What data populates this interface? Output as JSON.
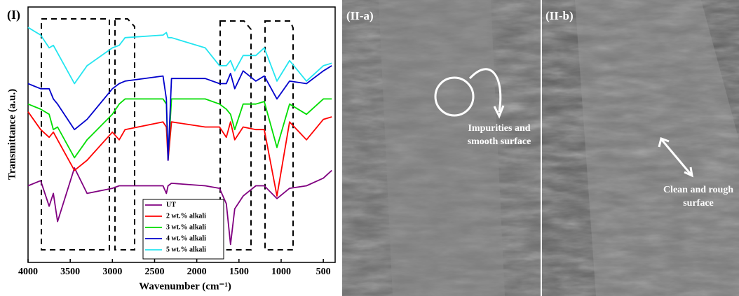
{
  "chart_data": {
    "type": "line",
    "panel_label": "(I)",
    "x_label": "Wavenumber (cm⁻¹)",
    "y_label": "Transmittance (a.u.)",
    "xlim": [
      4000,
      360
    ],
    "ylim": [
      0,
      100
    ],
    "xticks": [
      4000,
      3500,
      3000,
      2500,
      2000,
      1500,
      1000,
      500
    ],
    "legend": "lower center",
    "x": [
      4000,
      3850,
      3750,
      3700,
      3650,
      3450,
      3300,
      3000,
      2920,
      2850,
      2400,
      2360,
      2340,
      2300,
      1900,
      1730,
      1650,
      1600,
      1550,
      1450,
      1300,
      1200,
      1050,
      900,
      700,
      500,
      400
    ],
    "series": [
      {
        "name": "UT",
        "color": "#800080",
        "values": [
          30,
          32,
          22,
          27,
          16,
          37,
          27,
          29,
          30,
          30,
          30,
          27,
          30,
          31,
          30,
          29,
          23,
          7,
          21,
          26,
          30,
          30,
          25,
          29,
          30,
          33,
          36
        ]
      },
      {
        "name": "2 wt.% alkali",
        "color": "#ff0000",
        "values": [
          59,
          52,
          49,
          51,
          48,
          36,
          40,
          51,
          48,
          52,
          55,
          53,
          40,
          55,
          53,
          53,
          49,
          55,
          48,
          53,
          52,
          52,
          26,
          55,
          48,
          56,
          57
        ]
      },
      {
        "name": "3 wt.% alkali",
        "color": "#00dd00",
        "values": [
          62,
          60,
          58,
          52,
          53,
          41,
          48,
          58,
          62,
          64,
          64,
          62,
          41,
          64,
          64,
          62,
          60,
          58,
          52,
          62,
          62,
          63,
          45,
          62,
          58,
          64,
          64
        ]
      },
      {
        "name": "4 wt.% alkali",
        "color": "#0000cc",
        "values": [
          70,
          68,
          68,
          64,
          62,
          52,
          56,
          68,
          70,
          71,
          73,
          64,
          40,
          72,
          72,
          70,
          70,
          74,
          68,
          75,
          71,
          73,
          64,
          71,
          70,
          75,
          77
        ]
      },
      {
        "name": "5 wt.% alkali",
        "color": "#22e5f0",
        "values": [
          92,
          89,
          84,
          85,
          82,
          70,
          77,
          84,
          85,
          88,
          89,
          90,
          88,
          88,
          84,
          77,
          77,
          79,
          75,
          81,
          81,
          84,
          71,
          79,
          71,
          77,
          78
        ]
      }
    ]
  },
  "images": [
    {
      "label": "(II-a)",
      "annotation": [
        "Impurities  and",
        "smooth surface"
      ]
    },
    {
      "label": "(II-b)",
      "annotation": [
        "Clean and rough",
        "surface"
      ]
    }
  ]
}
